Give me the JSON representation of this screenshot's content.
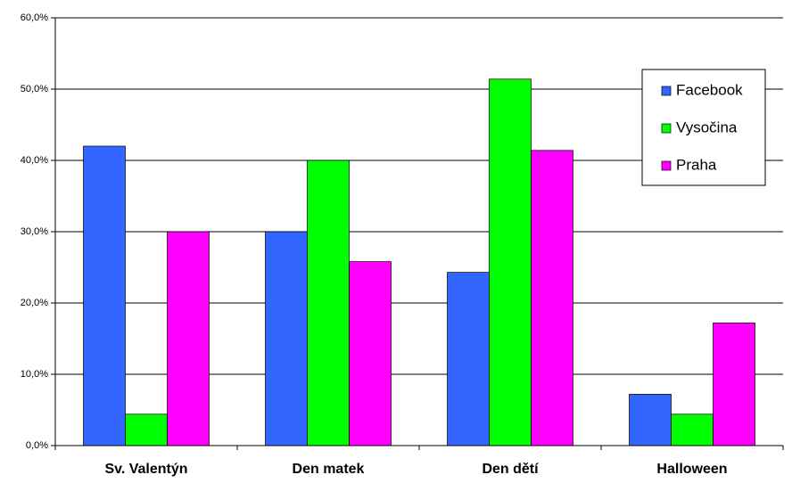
{
  "chart_data": {
    "type": "bar",
    "categories": [
      "Sv. Valentýn",
      "Den matek",
      "Den dětí",
      "Halloween"
    ],
    "series": [
      {
        "name": "Facebook",
        "color": "#3366ff",
        "values": [
          42,
          30,
          24.3,
          7.2
        ]
      },
      {
        "name": "Vysočina",
        "color": "#00ff00",
        "values": [
          4.4,
          40,
          51.4,
          4.4
        ]
      },
      {
        "name": "Praha",
        "color": "#ff00ff",
        "values": [
          30,
          25.8,
          41.4,
          17.2
        ]
      }
    ],
    "ylim": [
      0,
      60
    ],
    "yticks": [
      {
        "value": 0,
        "label": "0,0%"
      },
      {
        "value": 10,
        "label": "10,0%"
      },
      {
        "value": 20,
        "label": "20,0%"
      },
      {
        "value": 30,
        "label": "30,0%"
      },
      {
        "value": 40,
        "label": "40,0%"
      },
      {
        "value": 50,
        "label": "50,0%"
      },
      {
        "value": 60,
        "label": "60,0%"
      }
    ],
    "grid": true,
    "legend": "right"
  }
}
